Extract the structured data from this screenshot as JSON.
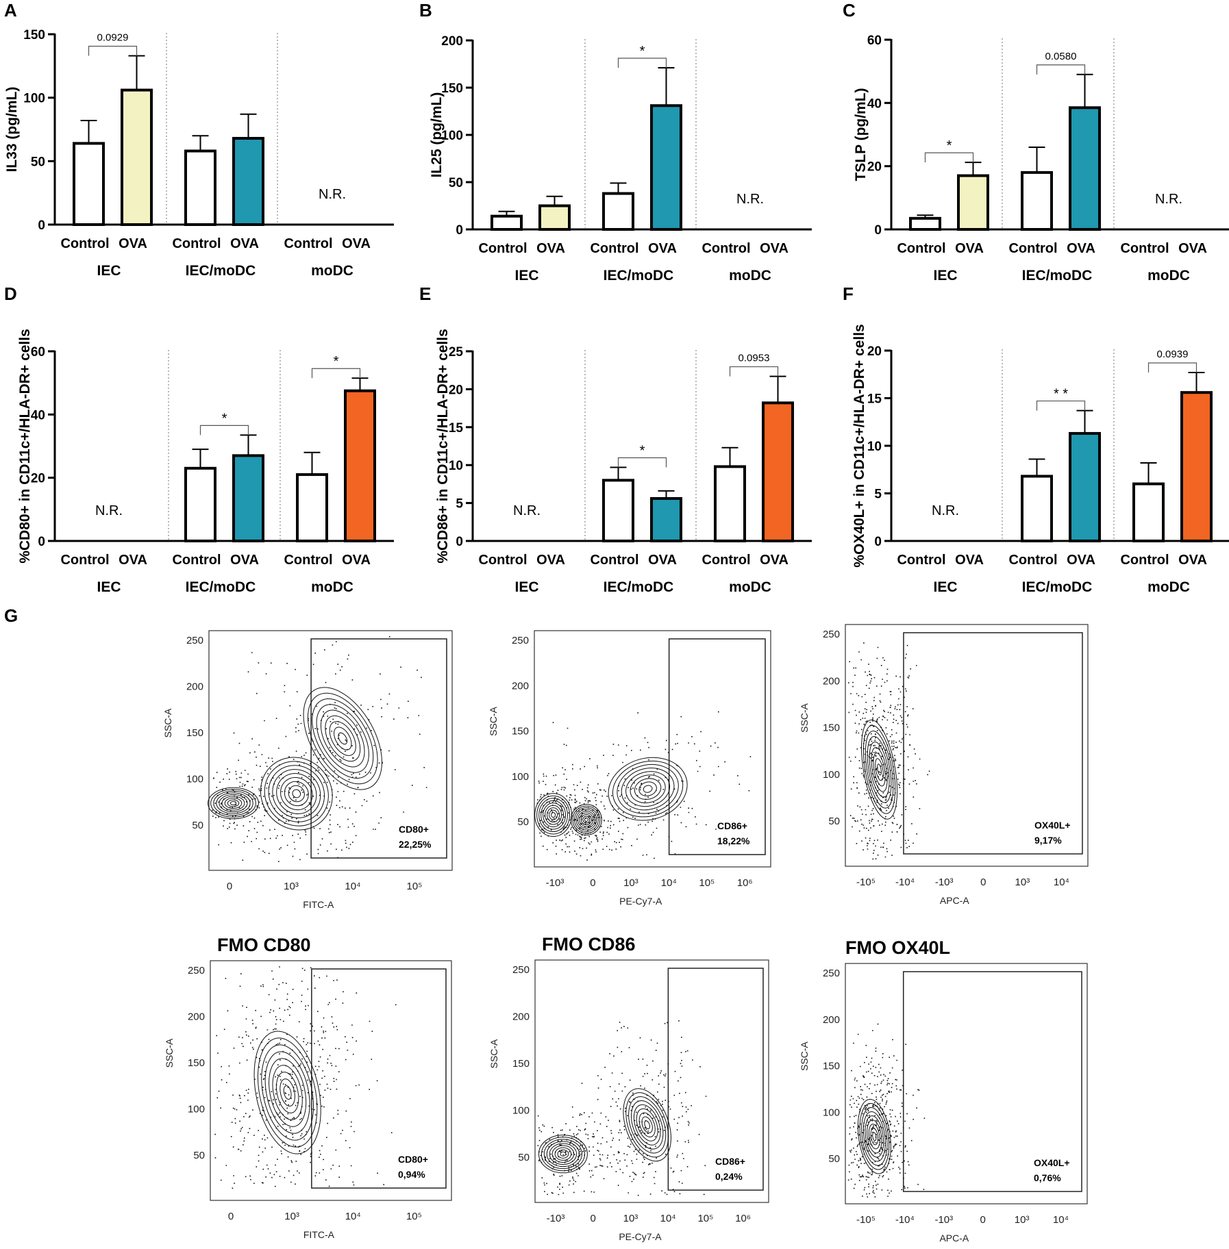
{
  "figure_letter_G": "G",
  "colors": {
    "control": "#ffffff",
    "ova_iec": "#f3f2c2",
    "ova_iec_modc": "#1f98b0",
    "ova_modc": "#f26522",
    "axis": "#000000",
    "divider": "#8a8a8a"
  },
  "chart_data": [
    {
      "panel": "A",
      "type": "bar",
      "ylabel": "IL33 (pg/mL)",
      "ylim": [
        0,
        150
      ],
      "yticks": [
        0,
        50,
        100,
        150
      ],
      "groups": [
        {
          "name": "IEC",
          "categories": [
            "Control",
            "OVA"
          ],
          "values": [
            64,
            106
          ],
          "errors": [
            18,
            27
          ],
          "nr": null,
          "sig": "0.0929"
        },
        {
          "name": "IEC/moDC",
          "categories": [
            "Control",
            "OVA"
          ],
          "values": [
            58,
            68
          ],
          "errors": [
            12,
            19
          ],
          "nr": null,
          "sig": null
        },
        {
          "name": "moDC",
          "categories": [
            "Control",
            "OVA"
          ],
          "values": [
            null,
            null
          ],
          "errors": [
            null,
            null
          ],
          "nr": "N.R.",
          "sig": null
        }
      ]
    },
    {
      "panel": "B",
      "type": "bar",
      "ylabel": "IL25 (pg/mL)",
      "ylim": [
        0,
        200
      ],
      "yticks": [
        0,
        50,
        100,
        150,
        200
      ],
      "groups": [
        {
          "name": "IEC",
          "categories": [
            "Control",
            "OVA"
          ],
          "values": [
            14,
            25
          ],
          "errors": [
            5,
            10
          ],
          "nr": null,
          "sig": null
        },
        {
          "name": "IEC/moDC",
          "categories": [
            "Control",
            "OVA"
          ],
          "values": [
            38,
            131
          ],
          "errors": [
            11,
            40
          ],
          "nr": null,
          "sig": "*"
        },
        {
          "name": "moDC",
          "categories": [
            "Control",
            "OVA"
          ],
          "values": [
            null,
            null
          ],
          "errors": [
            null,
            null
          ],
          "nr": "N.R.",
          "sig": null
        }
      ]
    },
    {
      "panel": "C",
      "type": "bar",
      "ylabel": "TSLP (pg/mL)",
      "ylim": [
        0,
        60
      ],
      "yticks": [
        0,
        20,
        40,
        60
      ],
      "groups": [
        {
          "name": "IEC",
          "categories": [
            "Control",
            "OVA"
          ],
          "values": [
            3.5,
            17
          ],
          "errors": [
            1,
            4.2
          ],
          "nr": null,
          "sig": "*"
        },
        {
          "name": "IEC/moDC",
          "categories": [
            "Control",
            "OVA"
          ],
          "values": [
            18,
            38.5
          ],
          "errors": [
            8,
            10.5
          ],
          "nr": null,
          "sig": "0.0580"
        },
        {
          "name": "moDC",
          "categories": [
            "Control",
            "OVA"
          ],
          "values": [
            null,
            null
          ],
          "errors": [
            null,
            null
          ],
          "nr": "N.R.",
          "sig": null
        }
      ]
    },
    {
      "panel": "D",
      "type": "bar",
      "ylabel": "%CD80+ in CD11c+/HLA-DR+ cells",
      "ylim": [
        0,
        60
      ],
      "yticks": [
        0,
        20,
        40,
        60
      ],
      "groups": [
        {
          "name": "IEC",
          "categories": [
            "Control",
            "OVA"
          ],
          "values": [
            null,
            null
          ],
          "errors": [
            null,
            null
          ],
          "nr": "N.R.",
          "sig": null
        },
        {
          "name": "IEC/moDC",
          "categories": [
            "Control",
            "OVA"
          ],
          "values": [
            23,
            27
          ],
          "errors": [
            6,
            6.5
          ],
          "nr": null,
          "sig": "*"
        },
        {
          "name": "moDC",
          "categories": [
            "Control",
            "OVA"
          ],
          "values": [
            21,
            47.5
          ],
          "errors": [
            7,
            4
          ],
          "nr": null,
          "sig": "*"
        }
      ]
    },
    {
      "panel": "E",
      "type": "bar",
      "ylabel": "%CD86+ in CD11c+/HLA-DR+ cells",
      "ylim": [
        0,
        25
      ],
      "yticks": [
        0,
        5,
        10,
        15,
        20,
        25
      ],
      "groups": [
        {
          "name": "IEC",
          "categories": [
            "Control",
            "OVA"
          ],
          "values": [
            null,
            null
          ],
          "errors": [
            null,
            null
          ],
          "nr": "N.R.",
          "sig": null
        },
        {
          "name": "IEC/moDC",
          "categories": [
            "Control",
            "OVA"
          ],
          "values": [
            8,
            5.6
          ],
          "errors": [
            1.7,
            1
          ],
          "nr": null,
          "sig": "*"
        },
        {
          "name": "moDC",
          "categories": [
            "Control",
            "OVA"
          ],
          "values": [
            9.8,
            18.2
          ],
          "errors": [
            2.5,
            3.5
          ],
          "nr": null,
          "sig": "0.0953"
        }
      ]
    },
    {
      "panel": "F",
      "type": "bar",
      "ylabel": "%OX40L+ in CD11c+/HLA-DR+ cells",
      "ylim": [
        0,
        20
      ],
      "yticks": [
        0,
        5,
        10,
        15,
        20
      ],
      "groups": [
        {
          "name": "IEC",
          "categories": [
            "Control",
            "OVA"
          ],
          "values": [
            null,
            null
          ],
          "errors": [
            null,
            null
          ],
          "nr": "N.R.",
          "sig": null
        },
        {
          "name": "IEC/moDC",
          "categories": [
            "Control",
            "OVA"
          ],
          "values": [
            6.8,
            11.3
          ],
          "errors": [
            1.8,
            2.4
          ],
          "nr": null,
          "sig": "* *"
        },
        {
          "name": "moDC",
          "categories": [
            "Control",
            "OVA"
          ],
          "values": [
            6,
            15.6
          ],
          "errors": [
            2.2,
            2.1
          ],
          "nr": null,
          "sig": "0.0939"
        }
      ]
    }
  ],
  "flow_plots": [
    {
      "id": "cd80",
      "title": "",
      "ylabel": "SSC-A",
      "xlabel": "FITC-A",
      "yticks": [
        "250",
        "200",
        "150",
        "100",
        "50"
      ],
      "xticks": [
        "0",
        "10³",
        "10⁴",
        "10⁵"
      ],
      "gate_label": "CD80+",
      "gate_value": "22,25%"
    },
    {
      "id": "cd86",
      "title": "",
      "ylabel": "SSC-A",
      "xlabel": "PE-Cy7-A",
      "yticks": [
        "250",
        "200",
        "150",
        "100",
        "50"
      ],
      "xticks": [
        "-10³",
        "0",
        "10³",
        "10⁴",
        "10⁵",
        "10⁶"
      ],
      "gate_label": "CD86+",
      "gate_value": "18,22%"
    },
    {
      "id": "ox40l",
      "title": "",
      "ylabel": "SSC-A",
      "xlabel": "APC-A",
      "yticks": [
        "250",
        "200",
        "150",
        "100",
        "50"
      ],
      "xticks": [
        "-10⁵",
        "-10⁴",
        "-10³",
        "0",
        "10³",
        "10⁴"
      ],
      "gate_label": "OX40L+",
      "gate_value": "9,17%"
    },
    {
      "id": "fmo-cd80",
      "title": "FMO CD80",
      "ylabel": "SSC-A",
      "xlabel": "FITC-A",
      "yticks": [
        "250",
        "200",
        "150",
        "100",
        "50"
      ],
      "xticks": [
        "0",
        "10³",
        "10⁴",
        "10⁵"
      ],
      "gate_label": "CD80+",
      "gate_value": "0,94%"
    },
    {
      "id": "fmo-cd86",
      "title": "FMO CD86",
      "ylabel": "SSC-A",
      "xlabel": "PE-Cy7-A",
      "yticks": [
        "250",
        "200",
        "150",
        "100",
        "50"
      ],
      "xticks": [
        "-10³",
        "0",
        "10³",
        "10⁴",
        "10⁵",
        "10⁶"
      ],
      "gate_label": "CD86+",
      "gate_value": "0,24%"
    },
    {
      "id": "fmo-ox40l",
      "title": "FMO OX40L",
      "ylabel": "SSC-A",
      "xlabel": "APC-A",
      "yticks": [
        "250",
        "200",
        "150",
        "100",
        "50"
      ],
      "xticks": [
        "-10⁵",
        "-10⁴",
        "-10³",
        "0",
        "10³",
        "10⁴"
      ],
      "gate_label": "OX40L+",
      "gate_value": "0,76%"
    }
  ]
}
